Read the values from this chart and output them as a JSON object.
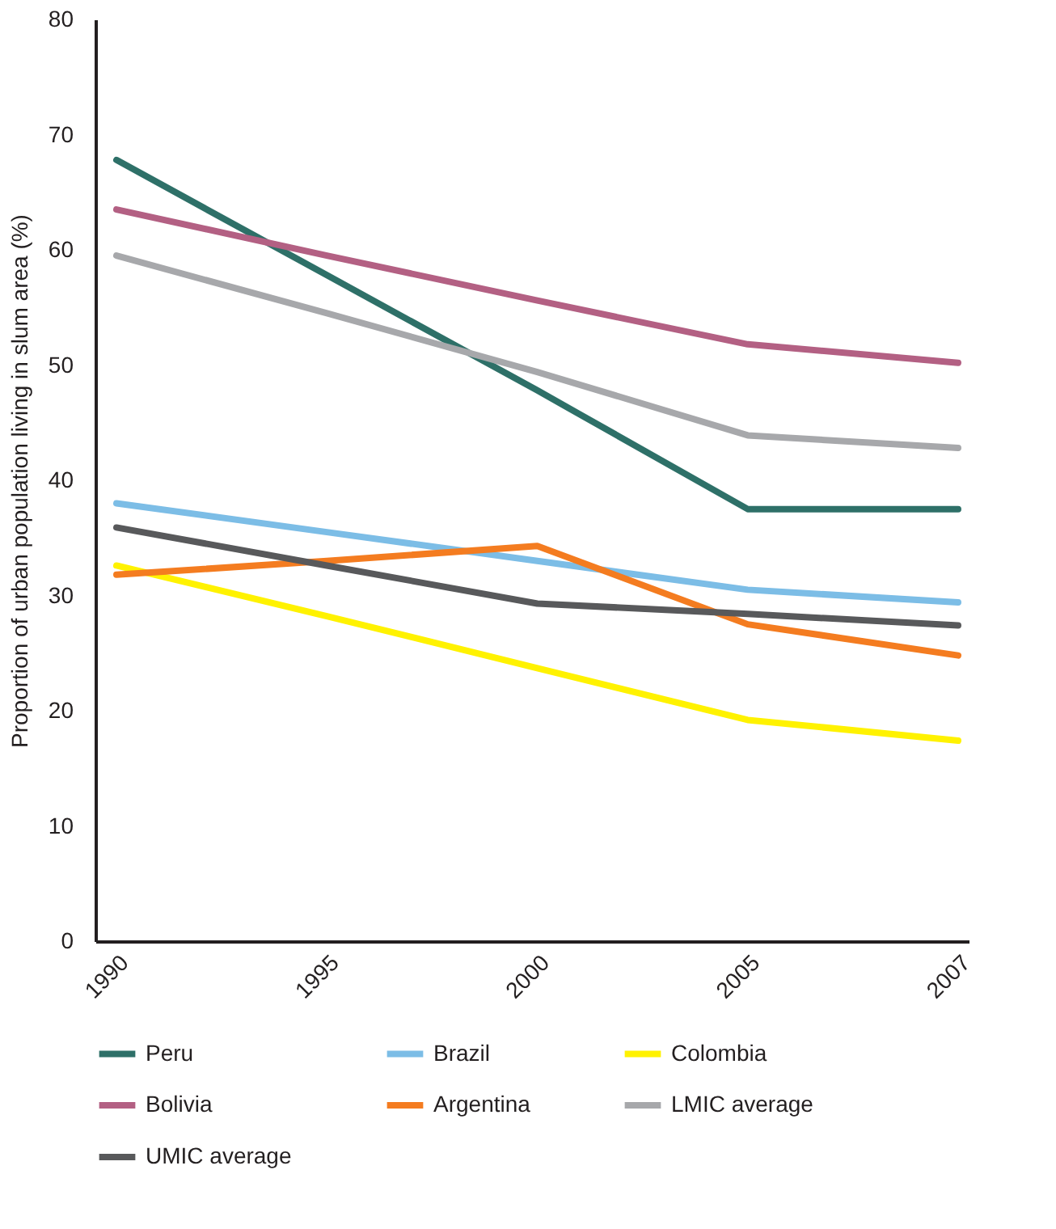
{
  "chart_data": {
    "type": "line",
    "ylabel": "Proportion of urban population living in slum area (%)",
    "categories": [
      "1990",
      "1995",
      "2000",
      "2005",
      "2007"
    ],
    "ylim": [
      0,
      80
    ],
    "yticks": [
      0,
      10,
      20,
      30,
      40,
      50,
      60,
      70,
      80
    ],
    "grid": false,
    "legend": "bottom",
    "marker": "none",
    "line_style": "solid",
    "series": [
      {
        "name": "Peru",
        "color": "#2e7068",
        "values": [
          67.8,
          57.8,
          47.8,
          37.5,
          37.5
        ]
      },
      {
        "name": "Brazil",
        "color": "#7cbde6",
        "values": [
          38.0,
          35.5,
          33.0,
          30.5,
          29.4
        ]
      },
      {
        "name": "Colombia",
        "color": "#fff200",
        "values": [
          32.6,
          28.2,
          23.7,
          19.2,
          17.4
        ]
      },
      {
        "name": "Bolivia",
        "color": "#b36083",
        "values": [
          63.5,
          59.5,
          55.6,
          51.8,
          50.2
        ]
      },
      {
        "name": "Argentina",
        "color": "#f47c20",
        "values": [
          31.8,
          33.0,
          34.3,
          27.5,
          24.8
        ]
      },
      {
        "name": "LMIC average",
        "color": "#a7a8ab",
        "values": [
          59.5,
          54.5,
          49.4,
          43.9,
          42.8
        ]
      },
      {
        "name": "UMIC average",
        "color": "#58595b",
        "values": [
          35.9,
          32.6,
          29.3,
          28.4,
          27.4
        ]
      }
    ]
  }
}
